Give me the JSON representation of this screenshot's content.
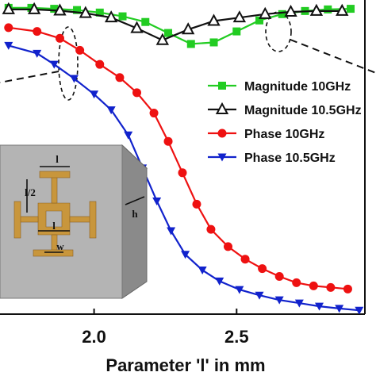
{
  "chart_data": {
    "type": "line",
    "title": "",
    "xlabel": "Parameter 'l' in mm",
    "ylabel": "",
    "xlim": [
      1.67,
      2.95
    ],
    "ylim": [
      0,
      1
    ],
    "x_ticks": [
      {
        "value": 2.0,
        "label": "2.0"
      },
      {
        "value": 2.5,
        "label": "2.5"
      }
    ],
    "legend_position": "right",
    "series": [
      {
        "name": "Magnitude 10GHz",
        "color": "#22cc22",
        "marker": "square",
        "x": [
          1.7,
          1.78,
          1.86,
          1.94,
          2.02,
          2.1,
          2.18,
          2.26,
          2.34,
          2.42,
          2.5,
          2.58,
          2.66,
          2.74,
          2.82,
          2.9
        ],
        "y": [
          0.975,
          0.975,
          0.972,
          0.968,
          0.96,
          0.948,
          0.93,
          0.895,
          0.86,
          0.865,
          0.9,
          0.935,
          0.955,
          0.965,
          0.97,
          0.972
        ]
      },
      {
        "name": "Magnitude 10.5GHz",
        "color": "#111111",
        "marker": "triangle-open",
        "x": [
          1.7,
          1.79,
          1.88,
          1.97,
          2.06,
          2.15,
          2.24,
          2.33,
          2.42,
          2.51,
          2.6,
          2.69,
          2.78,
          2.87
        ],
        "y": [
          0.97,
          0.97,
          0.966,
          0.958,
          0.944,
          0.91,
          0.872,
          0.906,
          0.933,
          0.944,
          0.955,
          0.962,
          0.965,
          0.965
        ]
      },
      {
        "name": "Phase 10GHz",
        "color": "#ee1111",
        "marker": "circle",
        "x": [
          1.7,
          1.8,
          1.88,
          1.95,
          2.02,
          2.09,
          2.15,
          2.21,
          2.26,
          2.31,
          2.36,
          2.41,
          2.47,
          2.53,
          2.59,
          2.65,
          2.71,
          2.77,
          2.83,
          2.89
        ],
        "y": [
          0.912,
          0.9,
          0.878,
          0.84,
          0.795,
          0.753,
          0.705,
          0.64,
          0.55,
          0.45,
          0.35,
          0.27,
          0.215,
          0.175,
          0.145,
          0.12,
          0.1,
          0.09,
          0.085,
          0.08
        ]
      },
      {
        "name": "Phase 10.5GHz",
        "color": "#1122cc",
        "marker": "triangle-down",
        "x": [
          1.7,
          1.8,
          1.86,
          1.93,
          2.0,
          2.06,
          2.12,
          2.17,
          2.22,
          2.27,
          2.32,
          2.38,
          2.44,
          2.51,
          2.58,
          2.65,
          2.72,
          2.79,
          2.86,
          2.93
        ],
        "y": [
          0.855,
          0.83,
          0.795,
          0.75,
          0.7,
          0.65,
          0.57,
          0.465,
          0.36,
          0.265,
          0.19,
          0.14,
          0.105,
          0.078,
          0.06,
          0.045,
          0.035,
          0.025,
          0.018,
          0.012
        ]
      }
    ],
    "inset": {
      "labels": {
        "length": "l",
        "half_length": "l/2",
        "width": "w",
        "height": "h",
        "inner_length": "l"
      },
      "colors": {
        "face": "#b4b4b4",
        "side": "#8a8a8a",
        "top": "#cfcfcf",
        "pattern": "#c8963c"
      }
    }
  }
}
